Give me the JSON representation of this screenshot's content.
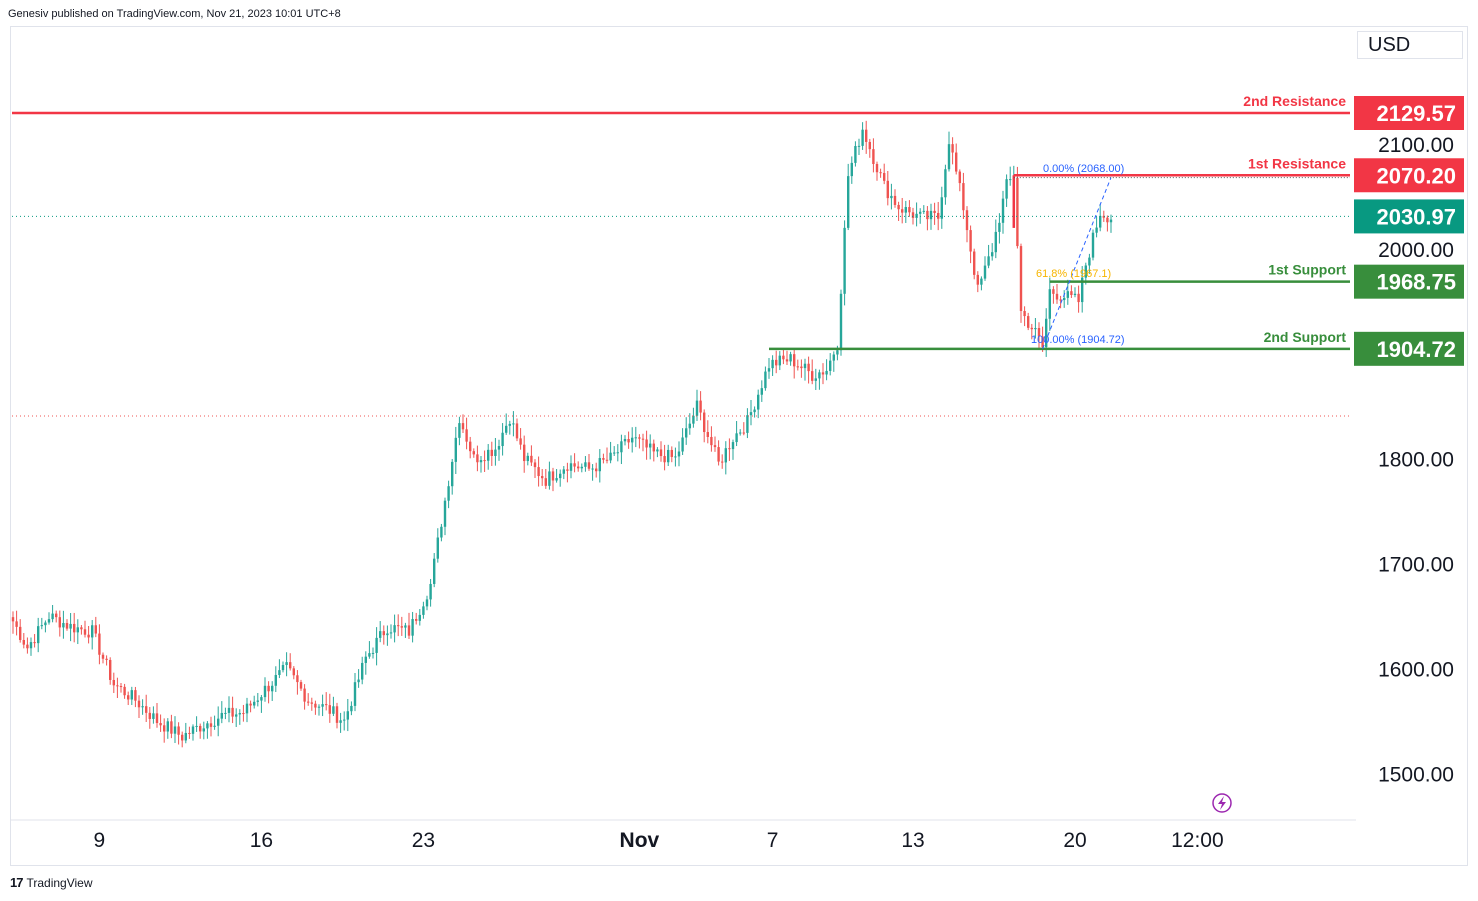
{
  "header": {
    "publisher_text": "Genesiv published on TradingView.com, Nov 21, 2023 10:01 UTC+8"
  },
  "currency": "USD",
  "footer": {
    "brand": "TradingView",
    "logo_glyph": "17"
  },
  "colors": {
    "up": "#26a69a",
    "down": "#ef5350",
    "resistance": "#f23645",
    "support": "#388e3c",
    "last_price": "#089981",
    "fib_blue": "#2962ff",
    "fib_gold": "#f7b500",
    "grid_text": "#131722"
  },
  "levels": [
    {
      "name": "2nd Resistance",
      "value": 2129.57,
      "label": "2129.57",
      "kind": "resistance"
    },
    {
      "name": "1st Resistance",
      "value": 2070.2,
      "label": "2070.20",
      "kind": "resistance"
    },
    {
      "name": "1st Support",
      "value": 1968.75,
      "label": "1968.75",
      "kind": "support"
    },
    {
      "name": "2nd Support",
      "value": 1904.72,
      "label": "1904.72",
      "kind": "support"
    }
  ],
  "last_price": {
    "value": 2030.97,
    "label": "2030.97"
  },
  "fib_labels": {
    "top": "0.00% (2068.00)",
    "mid": "61.8% (1967.1)",
    "bottom": "100.00% (1904.72)"
  },
  "flash_icon": "lightning-icon",
  "chart_data": {
    "type": "candlestick",
    "title": "",
    "xlabel": "",
    "ylabel": "",
    "ylim": [
      1430,
      2170
    ],
    "y_ticks": [
      "2100.00",
      "2000.00",
      "1800.00",
      "1700.00",
      "1600.00",
      "1500.00"
    ],
    "y_tick_values": [
      2100,
      2000,
      1800,
      1700,
      1600,
      1500
    ],
    "x_ticks": [
      "9",
      "16",
      "23",
      "Nov",
      "7",
      "13",
      "20",
      "12:00"
    ],
    "x_tick_index": [
      24,
      69,
      114,
      174,
      211,
      250,
      295,
      329
    ],
    "grid": false,
    "anchors": [
      [
        0,
        1645
      ],
      [
        4,
        1620
      ],
      [
        10,
        1650
      ],
      [
        16,
        1640
      ],
      [
        22,
        1635
      ],
      [
        28,
        1585
      ],
      [
        34,
        1570
      ],
      [
        40,
        1550
      ],
      [
        47,
        1535
      ],
      [
        52,
        1545
      ],
      [
        58,
        1555
      ],
      [
        64,
        1558
      ],
      [
        70,
        1580
      ],
      [
        76,
        1600
      ],
      [
        82,
        1570
      ],
      [
        88,
        1560
      ],
      [
        92,
        1550
      ],
      [
        98,
        1610
      ],
      [
        104,
        1640
      ],
      [
        110,
        1635
      ],
      [
        116,
        1680
      ],
      [
        121,
        1780
      ],
      [
        124,
        1840
      ],
      [
        128,
        1800
      ],
      [
        134,
        1810
      ],
      [
        138,
        1840
      ],
      [
        142,
        1800
      ],
      [
        148,
        1780
      ],
      [
        154,
        1795
      ],
      [
        160,
        1790
      ],
      [
        166,
        1800
      ],
      [
        172,
        1820
      ],
      [
        178,
        1805
      ],
      [
        184,
        1800
      ],
      [
        190,
        1850
      ],
      [
        196,
        1795
      ],
      [
        200,
        1820
      ],
      [
        204,
        1835
      ],
      [
        210,
        1890
      ],
      [
        216,
        1895
      ],
      [
        222,
        1880
      ],
      [
        226,
        1885
      ],
      [
        229,
        1910
      ],
      [
        232,
        2070
      ],
      [
        236,
        2115
      ],
      [
        242,
        2060
      ],
      [
        246,
        2040
      ],
      [
        252,
        2030
      ],
      [
        257,
        2030
      ],
      [
        260,
        2105
      ],
      [
        264,
        2040
      ],
      [
        268,
        1960
      ],
      [
        272,
        2000
      ],
      [
        276,
        2060
      ],
      [
        278,
        2070
      ],
      [
        280,
        1940
      ],
      [
        284,
        1920
      ],
      [
        286,
        1906
      ],
      [
        288,
        1960
      ],
      [
        292,
        1955
      ],
      [
        296,
        1950
      ],
      [
        298,
        1985
      ],
      [
        302,
        2035
      ],
      [
        305,
        2030
      ]
    ]
  }
}
